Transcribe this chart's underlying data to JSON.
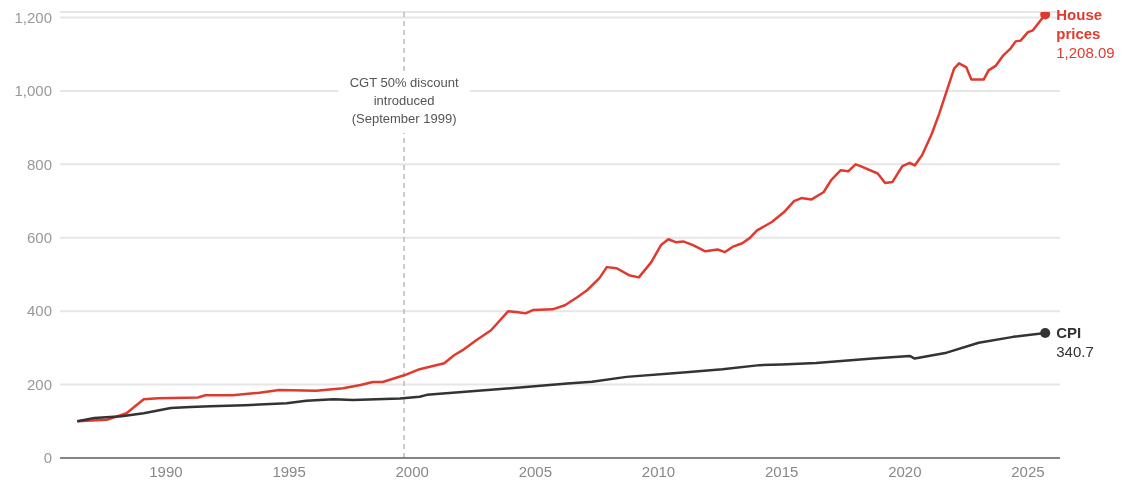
{
  "chart_data": {
    "type": "line",
    "xlim": [
      1985.7,
      2026.3
    ],
    "xticks": [
      1990,
      1995,
      2000,
      2005,
      2010,
      2015,
      2020,
      2025
    ],
    "ylim": [
      0,
      1215
    ],
    "yticks": [
      0,
      200,
      400,
      600,
      800,
      {
        "value": 1000,
        "label": "1,000"
      },
      {
        "value": 1200,
        "label": "1,200"
      }
    ],
    "grid": "y",
    "line_style": "solid",
    "ref_lines": [
      {
        "axis": "x",
        "value": 1999.67,
        "label": "CGT 50% discount introduced (September 1999)",
        "color": "#bbbbbb",
        "line_style": "dashed"
      }
    ],
    "series": [
      {
        "name": "House prices",
        "color": "#e03a2f",
        "x": [
          1986.4,
          1987.6,
          1988.4,
          1989.1,
          1989.7,
          1990.8,
          1991.3,
          1991.6,
          1992.7,
          1993.8,
          1994.6,
          1996.1,
          1997.2,
          1997.9,
          1998.4,
          1998.8,
          1999.7,
          2000.3,
          2001.3,
          2001.7,
          2002.1,
          2002.6,
          2003.2,
          2003.9,
          2004.3,
          2004.6,
          2004.9,
          2005.7,
          2006.2,
          2006.7,
          2007.1,
          2007.6,
          2007.9,
          2008.3,
          2008.8,
          2009.2,
          2009.7,
          2010.1,
          2010.4,
          2010.7,
          2011.0,
          2011.4,
          2011.9,
          2012.4,
          2012.7,
          2013.0,
          2013.4,
          2013.7,
          2014.0,
          2014.6,
          2015.1,
          2015.5,
          2015.8,
          2016.2,
          2016.7,
          2017.0,
          2017.4,
          2017.7,
          2018.0,
          2018.2,
          2018.9,
          2019.2,
          2019.5,
          2019.9,
          2020.2,
          2020.4,
          2020.7,
          2021.1,
          2021.4,
          2022.0,
          2022.2,
          2022.5,
          2022.7,
          2023.2,
          2023.4,
          2023.7,
          2024.0,
          2024.3,
          2024.5,
          2024.7,
          2025.0,
          2025.2,
          2025.7
        ],
        "values": [
          100,
          104,
          122,
          160,
          163,
          164,
          165,
          171,
          171,
          178,
          185,
          183,
          190,
          199,
          207,
          207,
          226,
          242,
          258,
          280,
          296,
          321,
          348,
          400,
          397,
          394,
          403,
          405,
          416,
          438,
          457,
          490,
          520,
          517,
          498,
          492,
          533,
          580,
          596,
          588,
          590,
          580,
          563,
          568,
          561,
          575,
          585,
          599,
          620,
          643,
          670,
          700,
          708,
          704,
          724,
          756,
          784,
          781,
          800,
          795,
          775,
          749,
          752,
          795,
          804,
          797,
          825,
          884,
          939,
          1061,
          1075,
          1064,
          1031,
          1031,
          1056,
          1069,
          1097,
          1116,
          1135,
          1137,
          1160,
          1165,
          1208.09
        ],
        "value_labels": [
          null,
          null,
          null,
          null,
          null,
          null,
          null,
          null,
          null,
          null,
          null,
          null,
          null,
          null,
          null,
          null,
          null,
          null,
          null,
          null,
          null,
          null,
          null,
          null,
          null,
          null,
          null,
          null,
          null,
          null,
          null,
          null,
          null,
          null,
          null,
          null,
          null,
          null,
          null,
          null,
          null,
          null,
          null,
          null,
          null,
          null,
          null,
          null,
          null,
          null,
          null,
          null,
          null,
          null,
          null,
          null,
          null,
          null,
          null,
          null,
          null,
          null,
          null,
          null,
          null,
          null,
          null,
          null,
          null,
          null,
          null,
          null,
          null,
          null,
          null,
          null,
          null,
          null,
          null,
          null,
          null,
          null,
          "1,208.09"
        ]
      },
      {
        "name": "CPI",
        "color": "#333333",
        "x": [
          1986.4,
          1987.1,
          1988.2,
          1989.1,
          1990.2,
          1991.0,
          1991.8,
          1993.2,
          1994.9,
          1995.7,
          1996.8,
          1997.6,
          1999.5,
          2000.3,
          2000.6,
          2004.0,
          2006.3,
          2007.3,
          2008.7,
          2011.0,
          2012.6,
          2014.1,
          2015.0,
          2016.4,
          2018.7,
          2020.2,
          2020.4,
          2021.7,
          2023.0,
          2024.4,
          2025.7
        ],
        "values": [
          100,
          109,
          114,
          122,
          136,
          139,
          141,
          144,
          149,
          156,
          160,
          158,
          162,
          167,
          172,
          190,
          203,
          208,
          221,
          233,
          242,
          253,
          255,
          259,
          271,
          278,
          271,
          287,
          314,
          330,
          340.7
        ],
        "value_labels": [
          null,
          null,
          null,
          null,
          null,
          null,
          null,
          null,
          null,
          null,
          null,
          null,
          null,
          null,
          null,
          null,
          null,
          null,
          null,
          null,
          null,
          null,
          null,
          null,
          null,
          null,
          null,
          null,
          null,
          null,
          "340.7"
        ]
      }
    ]
  }
}
